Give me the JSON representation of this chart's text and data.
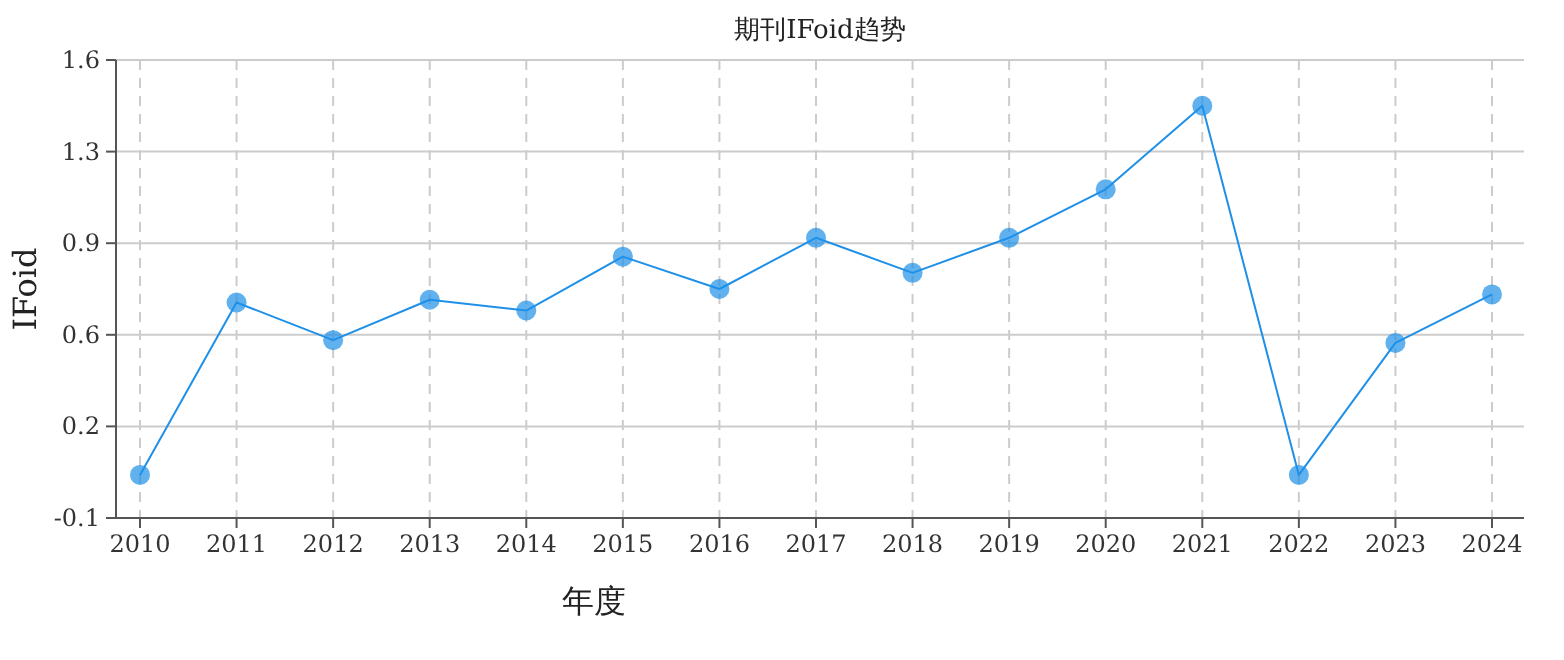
{
  "chart_data": {
    "type": "line",
    "title": "期刊IFoid趋势",
    "xlabel": "年度",
    "ylabel": "IFoid",
    "categories": [
      "2010",
      "2011",
      "2012",
      "2013",
      "2014",
      "2015",
      "2016",
      "2017",
      "2018",
      "2019",
      "2020",
      "2021",
      "2022",
      "2023",
      "2024"
    ],
    "series": [
      {
        "color": "#1e90e8",
        "values": [
          0.06,
          0.7,
          0.56,
          0.71,
          0.67,
          0.87,
          0.75,
          0.94,
          0.81,
          0.94,
          1.12,
          1.43,
          0.06,
          0.55,
          0.73
        ]
      }
    ],
    "ylim": [
      -0.1,
      1.6
    ],
    "yticks": [
      -0.1,
      {
        "value": 0.24,
        "label": "0.2"
      },
      {
        "value": 0.58,
        "label": "0.6"
      },
      {
        "value": 0.92,
        "label": "0.9"
      },
      {
        "value": 1.26,
        "label": "1.3"
      },
      1.6
    ],
    "grid": true,
    "marker": "circle",
    "line_style": "solid"
  }
}
